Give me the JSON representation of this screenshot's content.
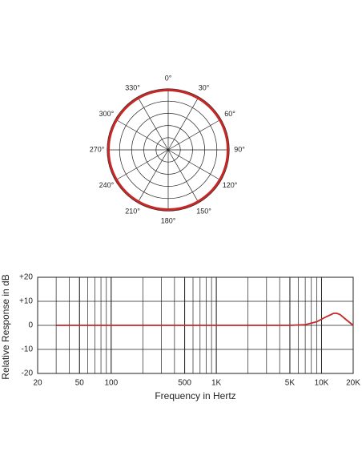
{
  "chart_data": [
    {
      "type": "polar",
      "categories": [
        "0°",
        "30°",
        "60°",
        "90°",
        "120°",
        "150°",
        "180°",
        "210°",
        "240°",
        "270°",
        "300°",
        "330°"
      ],
      "values": [
        5,
        5,
        5,
        5,
        5,
        5,
        5,
        5,
        5,
        5,
        5,
        5
      ],
      "rlim": [
        0,
        5.1
      ],
      "color": "#c62828"
    },
    {
      "type": "line",
      "x": [
        30,
        1000,
        5000,
        7000,
        9000,
        11000,
        13000,
        14000,
        15000,
        17000,
        20000
      ],
      "values": [
        0,
        0,
        0,
        0.3,
        1.5,
        3.5,
        5,
        5,
        4.5,
        2.5,
        0
      ],
      "color": "#c62828",
      "xscale": "log",
      "grid": true,
      "xlim": [
        20,
        20000
      ],
      "xticks": [
        20,
        50,
        100,
        500,
        {
          "value": 1000,
          "label": "1K"
        },
        {
          "value": 5000,
          "label": "5K"
        },
        {
          "value": 10000,
          "label": "10K"
        },
        {
          "value": 20000,
          "label": "20K"
        }
      ],
      "ylim": [
        -20,
        20
      ],
      "yticks": [
        {
          "value": 20,
          "label": "+20"
        },
        {
          "value": 10,
          "label": "+10"
        },
        0,
        -10,
        -20
      ],
      "xlabel": "Frequency in Hertz",
      "ylabel": "Relative Response in dB"
    }
  ]
}
